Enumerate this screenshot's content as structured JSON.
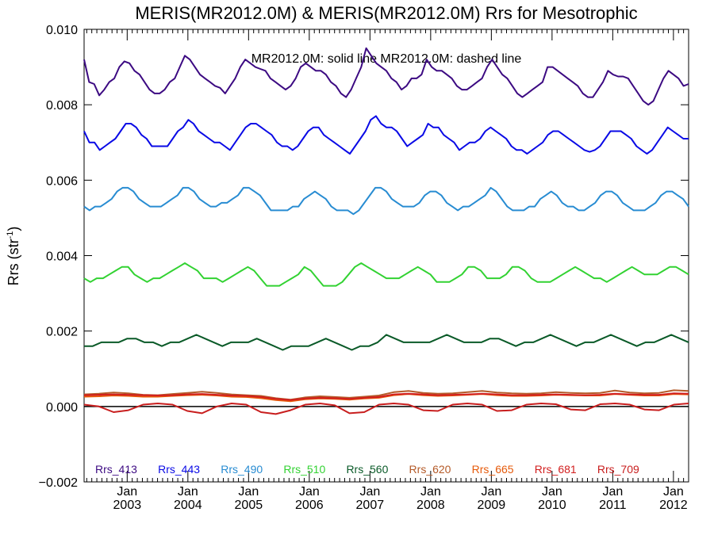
{
  "chart_data": {
    "type": "line",
    "title": "MERIS(MR2012.0M) & MERIS(MR2012.0M)  Rrs for Mesotrophic",
    "subtitle": "MR2012.0M: solid line   MR2012.0M: dashed line",
    "ylabel": "Rrs (str",
    "ylabel_sup": "-1",
    "ylabel_suffix": ")",
    "ylim": [
      -0.002,
      0.01
    ],
    "yticks": [
      -0.002,
      0.0,
      0.002,
      0.004,
      0.006,
      0.008,
      0.01
    ],
    "ytick_labels": [
      "−0.002",
      "0.000",
      "0.002",
      "0.004",
      "0.006",
      "0.008",
      "0.010"
    ],
    "xlim": [
      2002.29,
      2012.25
    ],
    "xticks": [
      2003,
      2004,
      2005,
      2006,
      2007,
      2008,
      2009,
      2010,
      2011,
      2012
    ],
    "xtick_top": "Jan",
    "xtick_labels": [
      "2003",
      "2004",
      "2005",
      "2006",
      "2007",
      "2008",
      "2009",
      "2010",
      "2011",
      "2012"
    ],
    "zero_line": true,
    "legend_position": "bottom inside",
    "series": [
      {
        "name": "Rrs_413",
        "color": "#3c0a82",
        "values": [
          0.0092,
          0.0086,
          0.00855,
          0.00825,
          0.0084,
          0.0086,
          0.0087,
          0.009,
          0.00915,
          0.0091,
          0.0089,
          0.0088,
          0.0086,
          0.0084,
          0.0083,
          0.0083,
          0.0084,
          0.0086,
          0.0087,
          0.009,
          0.0093,
          0.0092,
          0.009,
          0.0088,
          0.0087,
          0.0086,
          0.0085,
          0.00845,
          0.0083,
          0.0085,
          0.0087,
          0.009,
          0.0092,
          0.0091,
          0.009,
          0.00895,
          0.0089,
          0.0087,
          0.0086,
          0.0085,
          0.0084,
          0.0085,
          0.0087,
          0.009,
          0.0091,
          0.009,
          0.0089,
          0.0089,
          0.0088,
          0.0086,
          0.0085,
          0.0083,
          0.0082,
          0.0084,
          0.0087,
          0.009,
          0.0095,
          0.0093,
          0.0091,
          0.009,
          0.0089,
          0.0087,
          0.0086,
          0.0084,
          0.0085,
          0.0087,
          0.0087,
          0.0088,
          0.0092,
          0.009,
          0.0089,
          0.0089,
          0.0088,
          0.0087,
          0.0085,
          0.0084,
          0.0084,
          0.0085,
          0.0086,
          0.0087,
          0.009,
          0.0092,
          0.009,
          0.0088,
          0.0087,
          0.0085,
          0.0083,
          0.0082,
          0.0083,
          0.0084,
          0.0085,
          0.0086,
          0.009,
          0.009,
          0.0089,
          0.0088,
          0.0087,
          0.0086,
          0.0085,
          0.0083,
          0.0082,
          0.0082,
          0.0084,
          0.0086,
          0.0089,
          0.0088,
          0.00875,
          0.00875,
          0.0087,
          0.0085,
          0.0083,
          0.0081,
          0.008,
          0.0081,
          0.0084,
          0.0087,
          0.0089,
          0.0088,
          0.0087,
          0.0085,
          0.00855
        ]
      },
      {
        "name": "Rrs_443",
        "color": "#0a0ae6",
        "values": [
          0.0073,
          0.007,
          0.007,
          0.0068,
          0.0069,
          0.007,
          0.0071,
          0.0073,
          0.0075,
          0.0075,
          0.0074,
          0.0072,
          0.0071,
          0.0069,
          0.0069,
          0.0069,
          0.0069,
          0.0071,
          0.0073,
          0.0074,
          0.0076,
          0.0075,
          0.0073,
          0.0072,
          0.0071,
          0.007,
          0.007,
          0.0069,
          0.0068,
          0.007,
          0.0072,
          0.0074,
          0.0075,
          0.0075,
          0.0074,
          0.0073,
          0.0072,
          0.007,
          0.0069,
          0.0069,
          0.0068,
          0.0069,
          0.0071,
          0.0073,
          0.0074,
          0.0074,
          0.0072,
          0.0071,
          0.007,
          0.0069,
          0.0068,
          0.0067,
          0.0069,
          0.0071,
          0.0073,
          0.0076,
          0.0077,
          0.0075,
          0.0074,
          0.0074,
          0.0073,
          0.0071,
          0.0069,
          0.007,
          0.0071,
          0.0072,
          0.0075,
          0.0074,
          0.0074,
          0.0072,
          0.0071,
          0.007,
          0.0068,
          0.0069,
          0.007,
          0.007,
          0.0071,
          0.0073,
          0.0074,
          0.0073,
          0.0072,
          0.0071,
          0.0069,
          0.0068,
          0.0068,
          0.0067,
          0.0068,
          0.0069,
          0.007,
          0.0072,
          0.0073,
          0.0073,
          0.0072,
          0.0071,
          0.007,
          0.0069,
          0.0068,
          0.00675,
          0.0068,
          0.0069,
          0.0071,
          0.0073,
          0.0073,
          0.0073,
          0.0072,
          0.0071,
          0.0069,
          0.0068,
          0.0067,
          0.0068,
          0.007,
          0.0072,
          0.0074,
          0.0073,
          0.0072,
          0.0071,
          0.0071
        ]
      },
      {
        "name": "Rrs_490",
        "color": "#288cd2",
        "values": [
          0.0053,
          0.0052,
          0.0053,
          0.0053,
          0.0054,
          0.0055,
          0.0057,
          0.0058,
          0.0058,
          0.0057,
          0.0055,
          0.0054,
          0.0053,
          0.0053,
          0.0053,
          0.0054,
          0.0055,
          0.0056,
          0.0058,
          0.0058,
          0.0057,
          0.0055,
          0.0054,
          0.0053,
          0.0053,
          0.0054,
          0.0054,
          0.0055,
          0.0056,
          0.0058,
          0.0058,
          0.0057,
          0.0056,
          0.0054,
          0.0052,
          0.0052,
          0.0052,
          0.0052,
          0.0053,
          0.0053,
          0.0055,
          0.0056,
          0.0057,
          0.0056,
          0.0055,
          0.0053,
          0.0052,
          0.0052,
          0.0052,
          0.0051,
          0.0052,
          0.0054,
          0.0056,
          0.0058,
          0.0058,
          0.0057,
          0.0055,
          0.0054,
          0.0053,
          0.0053,
          0.0053,
          0.0054,
          0.0056,
          0.0057,
          0.0057,
          0.0056,
          0.0054,
          0.0053,
          0.0052,
          0.0053,
          0.0053,
          0.0054,
          0.0055,
          0.0056,
          0.0058,
          0.0057,
          0.0055,
          0.0053,
          0.0052,
          0.0052,
          0.0052,
          0.0053,
          0.0053,
          0.0055,
          0.0056,
          0.0057,
          0.0056,
          0.0054,
          0.0053,
          0.0053,
          0.0052,
          0.0052,
          0.0053,
          0.0054,
          0.0056,
          0.0057,
          0.0057,
          0.0056,
          0.0054,
          0.0053,
          0.0052,
          0.0052,
          0.0052,
          0.0053,
          0.0054,
          0.0056,
          0.0057,
          0.0057,
          0.0056,
          0.0055,
          0.0053
        ]
      },
      {
        "name": "Rrs_510",
        "color": "#32d232",
        "values": [
          0.0034,
          0.0033,
          0.0034,
          0.0034,
          0.0035,
          0.0036,
          0.0037,
          0.0037,
          0.0035,
          0.0034,
          0.0033,
          0.0034,
          0.0034,
          0.0035,
          0.0036,
          0.0037,
          0.0038,
          0.0037,
          0.0036,
          0.0034,
          0.0034,
          0.0034,
          0.0033,
          0.0034,
          0.0035,
          0.0036,
          0.0037,
          0.0036,
          0.0034,
          0.0032,
          0.0032,
          0.0032,
          0.0033,
          0.0034,
          0.0035,
          0.0037,
          0.0036,
          0.0034,
          0.0032,
          0.0032,
          0.0032,
          0.0033,
          0.0035,
          0.0037,
          0.0038,
          0.0037,
          0.0036,
          0.0035,
          0.0034,
          0.0034,
          0.0034,
          0.0035,
          0.0036,
          0.0037,
          0.0036,
          0.0035,
          0.0033,
          0.0033,
          0.0033,
          0.0034,
          0.0035,
          0.0037,
          0.0037,
          0.0036,
          0.0034,
          0.0034,
          0.0034,
          0.0035,
          0.0037,
          0.0037,
          0.0036,
          0.0034,
          0.0033,
          0.0033,
          0.0033,
          0.0034,
          0.0035,
          0.0036,
          0.0037,
          0.0036,
          0.0035,
          0.0034,
          0.0034,
          0.0033,
          0.0034,
          0.0035,
          0.0036,
          0.0037,
          0.0036,
          0.0035,
          0.0035,
          0.0035,
          0.0036,
          0.0037,
          0.0037,
          0.0036,
          0.0035
        ]
      },
      {
        "name": "Rrs_560",
        "color": "#0a5a28",
        "values": [
          0.0016,
          0.0016,
          0.0017,
          0.0017,
          0.0017,
          0.0018,
          0.0018,
          0.0017,
          0.0017,
          0.0016,
          0.0017,
          0.0017,
          0.0018,
          0.0019,
          0.0018,
          0.0017,
          0.0016,
          0.0017,
          0.0017,
          0.0017,
          0.0018,
          0.0017,
          0.0016,
          0.0015,
          0.0016,
          0.0016,
          0.0016,
          0.0017,
          0.0018,
          0.0017,
          0.0016,
          0.0015,
          0.0016,
          0.0016,
          0.0017,
          0.0019,
          0.0018,
          0.0017,
          0.0017,
          0.0017,
          0.0017,
          0.0018,
          0.0019,
          0.0018,
          0.0017,
          0.0017,
          0.0017,
          0.0018,
          0.0018,
          0.0017,
          0.0016,
          0.0017,
          0.0017,
          0.0018,
          0.0019,
          0.0018,
          0.0017,
          0.0016,
          0.0017,
          0.0017,
          0.0018,
          0.0019,
          0.0018,
          0.0017,
          0.0016,
          0.0017,
          0.0017,
          0.0018,
          0.0019,
          0.0018,
          0.0017
        ]
      },
      {
        "name": "Rrs_620",
        "color": "#b45a28",
        "values": [
          0.00032,
          0.00034,
          0.00037,
          0.00035,
          0.00031,
          0.0003,
          0.00033,
          0.00036,
          0.00039,
          0.00036,
          0.00032,
          0.0003,
          0.00028,
          0.00022,
          0.00018,
          0.00024,
          0.00027,
          0.00025,
          0.00023,
          0.00026,
          0.00029,
          0.00038,
          0.00041,
          0.00036,
          0.00034,
          0.00035,
          0.00038,
          0.00041,
          0.00037,
          0.00035,
          0.00034,
          0.00035,
          0.00038,
          0.00036,
          0.00035,
          0.00036,
          0.00042,
          0.00037,
          0.00035,
          0.00036,
          0.00043,
          0.00041
        ]
      },
      {
        "name": "Rrs_665",
        "color": "#e65a0a",
        "values": [
          0.00026,
          0.00027,
          0.00029,
          0.00028,
          0.00026,
          0.00026,
          0.00028,
          0.0003,
          0.00031,
          0.00029,
          0.00026,
          0.00025,
          0.00022,
          0.00017,
          0.00014,
          0.00019,
          0.00021,
          0.0002,
          0.00018,
          0.00021,
          0.00023,
          0.0003,
          0.00033,
          0.0003,
          0.00028,
          0.00029,
          0.00031,
          0.00033,
          0.0003,
          0.00028,
          0.00028,
          0.00029,
          0.00031,
          0.0003,
          0.00029,
          0.00029,
          0.00033,
          0.00031,
          0.00029,
          0.00029,
          0.00033,
          0.00032
        ]
      },
      {
        "name": "Rrs_681",
        "color": "#d21e1e",
        "values": [
          0.0003,
          0.00031,
          0.00032,
          0.00031,
          0.0003,
          0.00029,
          0.0003,
          0.00032,
          0.00033,
          0.00031,
          0.00029,
          0.00028,
          0.00025,
          0.0002,
          0.00017,
          0.00021,
          0.00023,
          0.00022,
          0.0002,
          0.00023,
          0.00025,
          0.00032,
          0.00034,
          0.00032,
          0.0003,
          0.00031,
          0.00032,
          0.00034,
          0.00032,
          0.0003,
          0.0003,
          0.00031,
          0.00032,
          0.00031,
          0.0003,
          0.00031,
          0.00034,
          0.00032,
          0.00031,
          0.00031,
          0.00035,
          0.00034
        ]
      },
      {
        "name": "Rrs_709",
        "color": "#c81e1e",
        "values": [
          5e-05,
          0.0,
          -0.00015,
          -0.0001,
          5e-05,
          8e-05,
          5e-05,
          -0.00012,
          -0.00018,
          0.0,
          8e-05,
          5e-05,
          -0.00015,
          -0.0002,
          -0.0001,
          5e-05,
          8e-05,
          3e-05,
          -0.00018,
          -0.00015,
          5e-05,
          8e-05,
          5e-05,
          -0.0001,
          -0.00012,
          5e-05,
          8e-05,
          5e-05,
          -0.00012,
          -0.0001,
          5e-05,
          8e-05,
          6e-05,
          -8e-05,
          -0.0001,
          6e-05,
          8e-05,
          5e-05,
          -8e-05,
          -0.0001,
          5e-05,
          8e-05
        ]
      }
    ]
  }
}
